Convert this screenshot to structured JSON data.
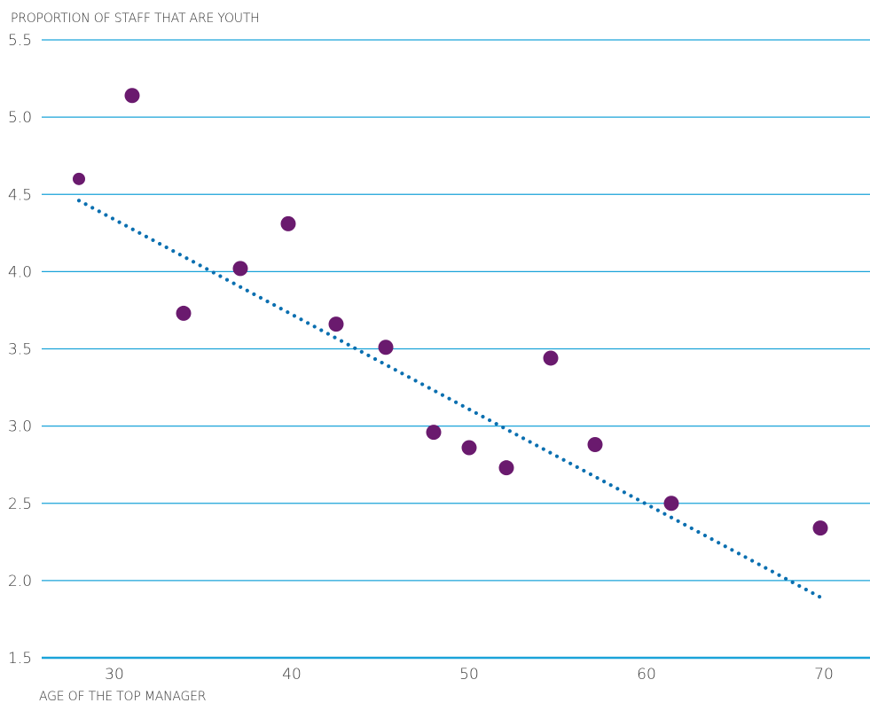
{
  "chart_data": {
    "type": "scatter",
    "title": "",
    "ylabel": "PROPORTION OF STAFF THAT ARE YOUTH",
    "xlabel": "AGE OF THE TOP MANAGER",
    "xlim": [
      25.9,
      72.6
    ],
    "ylim": [
      1.5,
      5.5
    ],
    "x_ticks": [
      30,
      40,
      50,
      60,
      70
    ],
    "y_ticks": [
      1.5,
      2.0,
      2.5,
      3.0,
      3.5,
      4.0,
      4.5,
      5.0,
      5.5
    ],
    "y_tick_labels": [
      "1.5",
      "2.0",
      "2.5",
      "3.0",
      "3.5",
      "4.0",
      "4.5",
      "5.0",
      "5.5"
    ],
    "x_tick_labels": [
      "30",
      "40",
      "50",
      "60",
      "70"
    ],
    "grid": "horizontal",
    "legend": "none",
    "series": [
      {
        "points": [
          {
            "x": 28.0,
            "y": 4.6
          },
          {
            "x": 31.0,
            "y": 5.14
          },
          {
            "x": 33.9,
            "y": 3.73
          },
          {
            "x": 37.1,
            "y": 4.02
          },
          {
            "x": 39.8,
            "y": 4.31
          },
          {
            "x": 42.5,
            "y": 3.66
          },
          {
            "x": 45.3,
            "y": 3.51
          },
          {
            "x": 48.0,
            "y": 2.96
          },
          {
            "x": 50.0,
            "y": 2.86
          },
          {
            "x": 52.1,
            "y": 2.73
          },
          {
            "x": 54.6,
            "y": 3.44
          },
          {
            "x": 57.1,
            "y": 2.88
          },
          {
            "x": 61.4,
            "y": 2.5
          },
          {
            "x": 69.8,
            "y": 2.34
          }
        ]
      }
    ],
    "trendline": {
      "style": "dotted",
      "x": [
        28.0,
        70.0
      ],
      "y": [
        4.46,
        1.88
      ]
    },
    "colors": {
      "points": "#6a1a6e",
      "trendline": "#0a6fb0",
      "gridline": "#1aa3d9",
      "baseline": "#1aa3d9",
      "text": "#3b3b3b"
    }
  }
}
